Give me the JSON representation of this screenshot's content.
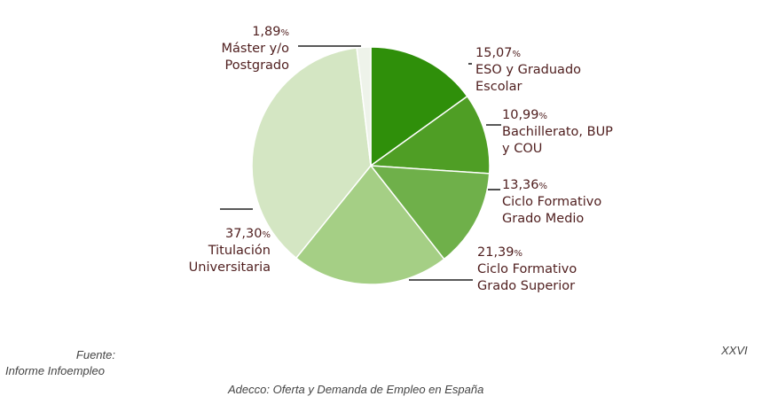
{
  "chart_data": {
    "type": "pie",
    "slices": [
      {
        "label": "ESO y Graduado Escolar",
        "label_lines": [
          "ESO y Graduado",
          "Escolar"
        ],
        "value": 15.07,
        "value_text": "15,07",
        "color": "#2f8f0a"
      },
      {
        "label": "Bachillerato, BUP y COU",
        "label_lines": [
          "Bachillerato, BUP",
          "y COU"
        ],
        "value": 10.99,
        "value_text": "10,99",
        "color": "#4f9e25"
      },
      {
        "label": "Ciclo Formativo Grado Medio",
        "label_lines": [
          "Ciclo Formativo",
          "Grado Medio"
        ],
        "value": 13.36,
        "value_text": "13,36",
        "color": "#6fb04a"
      },
      {
        "label": "Ciclo Formativo Grado Superior",
        "label_lines": [
          "Ciclo Formativo",
          "Grado Superior"
        ],
        "value": 21.39,
        "value_text": "21,39",
        "color": "#a5cf85"
      },
      {
        "label": "Titulación Universitaria",
        "label_lines": [
          "Titulación",
          "Universitaria"
        ],
        "value": 37.3,
        "value_text": "37,30",
        "color": "#d4e6c3"
      },
      {
        "label": "Máster y/o Postgrado",
        "label_lines": [
          "Máster y/o",
          "Postgrado"
        ],
        "value": 1.89,
        "value_text": "1,89",
        "color": "#eef3ea"
      }
    ],
    "percent_sign": "%"
  },
  "footer": {
    "fuente_label": "Fuente:",
    "fuente_source": "Informe Infoempleo",
    "page_number": "XXVI",
    "caption": "Adecco: Oferta y Demanda de Empleo en España"
  }
}
